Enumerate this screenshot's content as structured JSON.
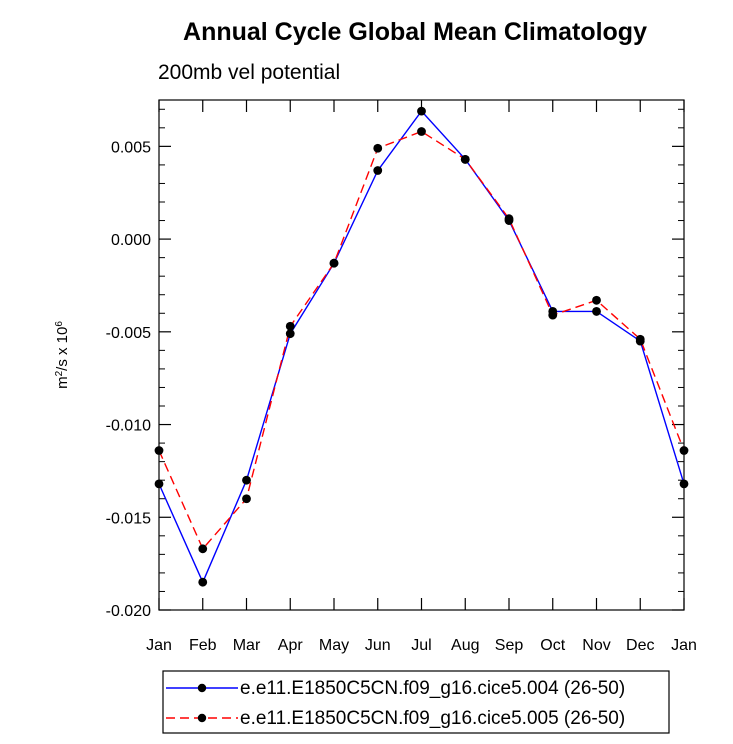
{
  "chart_data": {
    "type": "line",
    "title": "Annual Cycle Global Mean Climatology",
    "subtitle": "200mb vel potential",
    "ylabel_base": "m",
    "ylabel_sup1": "2",
    "ylabel_mid": "/s x 10",
    "ylabel_sup2": "6",
    "ylim": [
      -0.02,
      0.0075
    ],
    "yticks": [
      -0.02,
      -0.015,
      -0.01,
      -0.005,
      0.0,
      0.005
    ],
    "ytick_labels": [
      "-0.020",
      "-0.015",
      "-0.010",
      "-0.005",
      "0.000",
      "0.005"
    ],
    "categories": [
      "Jan",
      "Feb",
      "Mar",
      "Apr",
      "May",
      "Jun",
      "Jul",
      "Aug",
      "Sep",
      "Oct",
      "Nov",
      "Dec",
      "Jan"
    ],
    "series": [
      {
        "name": "e.e11.E1850C5CN.f09_g16.cice5.004 (26-50)",
        "color": "#0000ff",
        "dash": "solid",
        "values": [
          -0.0132,
          -0.0185,
          -0.013,
          -0.0051,
          -0.0013,
          0.0037,
          0.0069,
          0.0043,
          0.001,
          -0.0039,
          -0.0039,
          -0.0055,
          -0.0132
        ]
      },
      {
        "name": "e.e11.E1850C5CN.f09_g16.cice5.005 (26-50)",
        "color": "#ff0000",
        "dash": "dashed",
        "values": [
          -0.0114,
          -0.0167,
          -0.014,
          -0.0047,
          -0.0013,
          0.0049,
          0.0058,
          0.0043,
          0.0011,
          -0.0041,
          -0.0033,
          -0.0054,
          -0.0114
        ]
      }
    ],
    "marker_color": "#000000",
    "legend_position": "bottom"
  }
}
